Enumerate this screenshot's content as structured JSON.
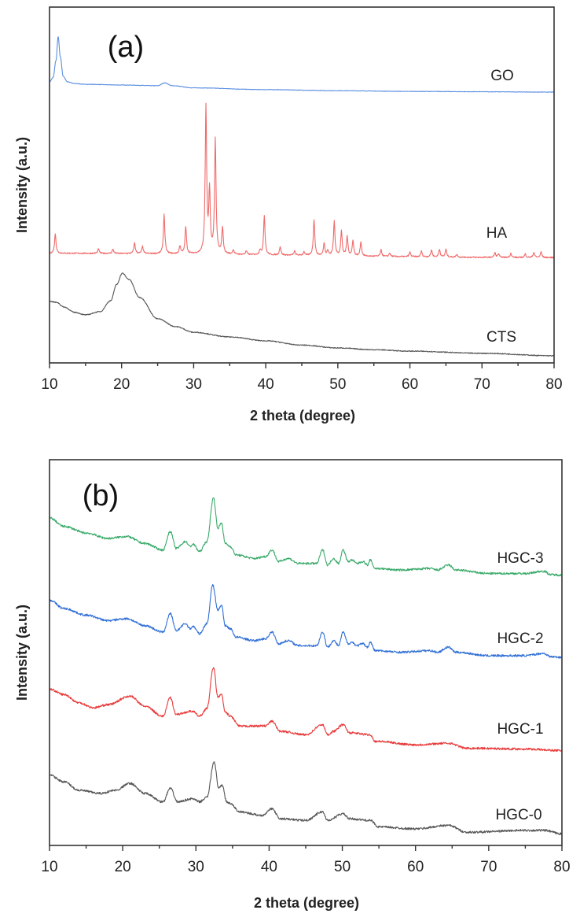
{
  "chart_data": [
    {
      "type": "line",
      "panel_label": "(a)",
      "xlabel": "2 theta (degree)",
      "ylabel": "Intensity (a.u.)",
      "xlim": [
        10,
        80
      ],
      "ylim": [
        0,
        100
      ],
      "xticks": [
        10,
        20,
        30,
        40,
        50,
        60,
        70,
        80
      ],
      "grid": false,
      "series": [
        {
          "name": "GO",
          "color": "#5b8fe0",
          "points": [
            [
              10,
              79.0
            ],
            [
              10.5,
              80.2
            ],
            [
              10.9,
              85
            ],
            [
              11.2,
              91.6
            ],
            [
              11.5,
              86
            ],
            [
              11.9,
              80.5
            ],
            [
              12.5,
              79.0
            ],
            [
              13.5,
              78.5
            ],
            [
              15,
              78.3
            ],
            [
              20,
              78.1
            ],
            [
              25,
              77.9
            ],
            [
              26,
              78.7
            ],
            [
              27,
              77.9
            ],
            [
              30,
              77.3
            ],
            [
              40,
              76.8
            ],
            [
              50,
              76.5
            ],
            [
              60,
              76.3
            ],
            [
              70,
              76.2
            ],
            [
              80,
              76.1
            ]
          ]
        },
        {
          "name": "HA",
          "color": "#f06a6a",
          "baseline": [
            [
              10,
              30.8
            ],
            [
              80,
              29.6
            ]
          ],
          "peaks": [
            [
              10.8,
              5.5
            ],
            [
              16.8,
              1.2
            ],
            [
              18.8,
              1.2
            ],
            [
              21.8,
              3.0
            ],
            [
              22.9,
              2.0
            ],
            [
              25.9,
              11.0
            ],
            [
              28.1,
              2.2
            ],
            [
              28.9,
              7.6
            ],
            [
              31.7,
              41.2
            ],
            [
              32.2,
              17.1
            ],
            [
              33.0,
              32.1
            ],
            [
              34.0,
              7.4
            ],
            [
              35.5,
              1.3
            ],
            [
              37.3,
              1.0
            ],
            [
              39.2,
              1.3
            ],
            [
              39.8,
              11.0
            ],
            [
              42.0,
              2.4
            ],
            [
              44.0,
              1.2
            ],
            [
              45.3,
              1.0
            ],
            [
              46.7,
              10.1
            ],
            [
              48.1,
              3.5
            ],
            [
              48.6,
              1.4
            ],
            [
              49.5,
              9.7
            ],
            [
              50.5,
              6.9
            ],
            [
              51.3,
              5.4
            ],
            [
              52.1,
              4.4
            ],
            [
              53.2,
              4.0
            ],
            [
              56.0,
              1.8
            ],
            [
              57.2,
              1.0
            ],
            [
              60.0,
              1.3
            ],
            [
              61.6,
              1.6
            ],
            [
              63.0,
              2.0
            ],
            [
              64.1,
              2.2
            ],
            [
              65.0,
              2.2
            ],
            [
              66.5,
              0.8
            ],
            [
              71.8,
              1.3
            ],
            [
              72.3,
              1.0
            ],
            [
              74.0,
              1.2
            ],
            [
              76.0,
              1.0
            ],
            [
              77.2,
              1.5
            ],
            [
              78.2,
              1.6
            ]
          ]
        },
        {
          "name": "CTS",
          "color": "#555555",
          "points": [
            [
              10,
              17.3
            ],
            [
              11,
              17.0
            ],
            [
              12,
              15.7
            ],
            [
              13.5,
              14.2
            ],
            [
              15,
              13.5
            ],
            [
              17,
              14.4
            ],
            [
              18.5,
              17.5
            ],
            [
              19.3,
              22
            ],
            [
              20.1,
              25.2
            ],
            [
              21,
              23.5
            ],
            [
              22.5,
              18.4
            ],
            [
              25,
              12.4
            ],
            [
              27.5,
              10.2
            ],
            [
              30,
              8.6
            ],
            [
              35,
              7.3
            ],
            [
              40,
              6.2
            ],
            [
              45,
              5.0
            ],
            [
              50,
              4.2
            ],
            [
              55,
              3.7
            ],
            [
              60,
              3.3
            ],
            [
              70,
              2.7
            ],
            [
              80,
              2.0
            ]
          ]
        }
      ]
    },
    {
      "type": "line",
      "panel_label": "(b)",
      "xlabel": "2 theta (degree)",
      "ylabel": "Intensity (a.u.)",
      "xlim": [
        10,
        80
      ],
      "ylim": [
        0,
        100
      ],
      "xticks": [
        10,
        20,
        30,
        40,
        50,
        60,
        70,
        80
      ],
      "grid": false,
      "series": [
        {
          "name": "HGC-3",
          "color": "#3aaa6a",
          "points": [
            [
              10,
              84.9
            ],
            [
              12,
              82.7
            ],
            [
              15,
              81.0
            ],
            [
              18,
              79.6
            ],
            [
              20.5,
              80.1
            ],
            [
              23,
              78.3
            ],
            [
              25.5,
              76.6
            ],
            [
              26.5,
              81.4
            ],
            [
              27.3,
              77.0
            ],
            [
              28.6,
              78.8
            ],
            [
              29.2,
              77.5
            ],
            [
              29.6,
              78.1
            ],
            [
              30.5,
              76.2
            ],
            [
              31.5,
              78.8
            ],
            [
              32.4,
              90.1
            ],
            [
              33.0,
              82.3
            ],
            [
              33.5,
              83.6
            ],
            [
              34.0,
              78.3
            ],
            [
              34.7,
              77.5
            ],
            [
              35.5,
              75.3
            ],
            [
              38,
              74.4
            ],
            [
              39.5,
              74.9
            ],
            [
              40.4,
              76.6
            ],
            [
              41.3,
              73.6
            ],
            [
              42.6,
              74.4
            ],
            [
              44,
              73.1
            ],
            [
              46.5,
              73.1
            ],
            [
              47.3,
              76.6
            ],
            [
              48,
              72.7
            ],
            [
              48.8,
              74.4
            ],
            [
              49.5,
              73.1
            ],
            [
              50.1,
              76.6
            ],
            [
              50.8,
              73.6
            ],
            [
              51.3,
              74.0
            ],
            [
              52,
              73.1
            ],
            [
              52.8,
              73.6
            ],
            [
              53.5,
              72.7
            ],
            [
              53.8,
              74.0
            ],
            [
              54.5,
              71.8
            ],
            [
              58,
              71.4
            ],
            [
              62,
              71.8
            ],
            [
              63,
              71.4
            ],
            [
              64.5,
              72.7
            ],
            [
              65.5,
              71.4
            ],
            [
              70,
              70.5
            ],
            [
              75,
              70.5
            ],
            [
              77.5,
              71.1
            ],
            [
              78.5,
              70.2
            ],
            [
              80,
              70.1
            ]
          ]
        },
        {
          "name": "HGC-2",
          "color": "#2f6fd6",
          "points": [
            [
              10,
              63.6
            ],
            [
              12,
              61.4
            ],
            [
              15,
              59.7
            ],
            [
              18,
              58.3
            ],
            [
              20.5,
              58.8
            ],
            [
              23,
              57.0
            ],
            [
              25.5,
              55.3
            ],
            [
              26.5,
              60.1
            ],
            [
              27.3,
              55.7
            ],
            [
              28.6,
              57.5
            ],
            [
              29.2,
              56.2
            ],
            [
              29.6,
              56.8
            ],
            [
              30.5,
              54.9
            ],
            [
              31.5,
              57.5
            ],
            [
              32.3,
              67.5
            ],
            [
              33.0,
              61.0
            ],
            [
              33.5,
              62.3
            ],
            [
              34.0,
              57.0
            ],
            [
              34.7,
              56.2
            ],
            [
              35.5,
              54.0
            ],
            [
              38,
              53.1
            ],
            [
              39.5,
              53.6
            ],
            [
              40.4,
              55.3
            ],
            [
              41.3,
              52.3
            ],
            [
              42.6,
              53.1
            ],
            [
              44,
              51.8
            ],
            [
              46.5,
              51.8
            ],
            [
              47.3,
              55.3
            ],
            [
              48,
              51.4
            ],
            [
              48.8,
              53.1
            ],
            [
              49.5,
              51.8
            ],
            [
              50.1,
              55.3
            ],
            [
              50.8,
              52.3
            ],
            [
              51.3,
              52.7
            ],
            [
              52,
              51.8
            ],
            [
              52.8,
              52.3
            ],
            [
              53.5,
              51.4
            ],
            [
              53.8,
              52.7
            ],
            [
              54.5,
              50.5
            ],
            [
              58,
              50.1
            ],
            [
              62,
              50.5
            ],
            [
              63,
              50.1
            ],
            [
              64.5,
              51.4
            ],
            [
              65.5,
              50.1
            ],
            [
              70,
              49.2
            ],
            [
              75,
              49.2
            ],
            [
              77.5,
              49.8
            ],
            [
              78.5,
              48.9
            ],
            [
              80,
              48.8
            ]
          ]
        },
        {
          "name": "HGC-1",
          "color": "#e83a3a",
          "points": [
            [
              10,
              40.5
            ],
            [
              12,
              39.1
            ],
            [
              14,
              37.0
            ],
            [
              16,
              35.7
            ],
            [
              18,
              36.5
            ],
            [
              21,
              38.7
            ],
            [
              23,
              36.1
            ],
            [
              25.5,
              33.5
            ],
            [
              26.5,
              38.3
            ],
            [
              27.3,
              34.0
            ],
            [
              29.5,
              34.8
            ],
            [
              30.5,
              33.5
            ],
            [
              31.5,
              35.5
            ],
            [
              32.4,
              46.1
            ],
            [
              33.0,
              38.5
            ],
            [
              33.5,
              39.1
            ],
            [
              34.0,
              34.5
            ],
            [
              34.7,
              33.5
            ],
            [
              36,
              30.9
            ],
            [
              39.5,
              31.0
            ],
            [
              40.4,
              32.2
            ],
            [
              41.5,
              29.6
            ],
            [
              45,
              28.7
            ],
            [
              47.3,
              31.3
            ],
            [
              48,
              28.7
            ],
            [
              48.8,
              29.6
            ],
            [
              50.1,
              31.3
            ],
            [
              51,
              29.2
            ],
            [
              53.8,
              28.7
            ],
            [
              54.5,
              27.0
            ],
            [
              60,
              26.1
            ],
            [
              64.5,
              26.5
            ],
            [
              67,
              25.2
            ],
            [
              75,
              25.0
            ],
            [
              80,
              24.6
            ]
          ]
        },
        {
          "name": "HGC-0",
          "color": "#555555",
          "points": [
            [
              10,
              18.2
            ],
            [
              12,
              16.5
            ],
            [
              14,
              14.3
            ],
            [
              17,
              13.5
            ],
            [
              19,
              14.3
            ],
            [
              21,
              16.1
            ],
            [
              23,
              13.5
            ],
            [
              25.5,
              11.3
            ],
            [
              26.5,
              14.8
            ],
            [
              27.5,
              11.3
            ],
            [
              29.5,
              12.1
            ],
            [
              30.5,
              11.3
            ],
            [
              31.5,
              12.5
            ],
            [
              32.5,
              21.7
            ],
            [
              33.1,
              14.8
            ],
            [
              33.6,
              15.6
            ],
            [
              34.2,
              11.3
            ],
            [
              34.7,
              10.8
            ],
            [
              36,
              8.7
            ],
            [
              39,
              7.8
            ],
            [
              40.4,
              9.5
            ],
            [
              41.5,
              6.9
            ],
            [
              45,
              6.5
            ],
            [
              47.3,
              8.7
            ],
            [
              48,
              6.5
            ],
            [
              50.1,
              8.2
            ],
            [
              51,
              6.9
            ],
            [
              53.8,
              6.5
            ],
            [
              55,
              4.8
            ],
            [
              60,
              4.3
            ],
            [
              64.5,
              5.2
            ],
            [
              67,
              3.4
            ],
            [
              75,
              3.9
            ],
            [
              77.5,
              3.9
            ],
            [
              80,
              3.0
            ]
          ]
        }
      ]
    }
  ]
}
